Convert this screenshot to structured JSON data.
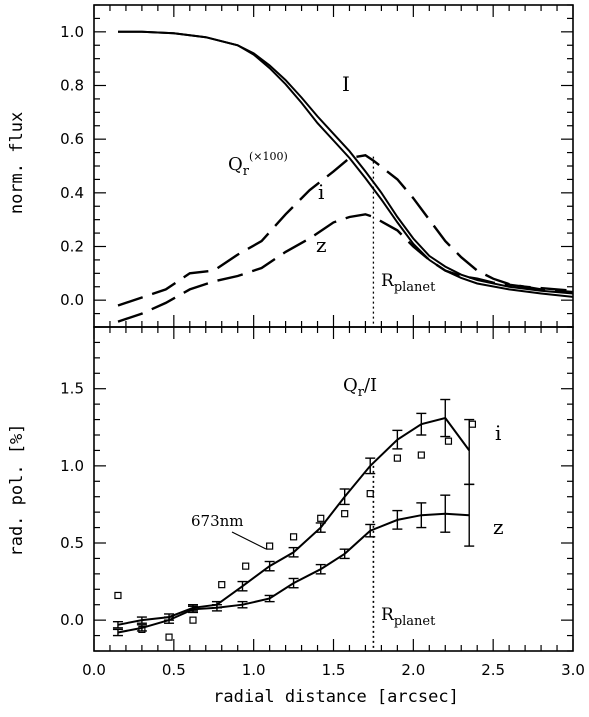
{
  "chart_data": [
    {
      "type": "line",
      "panel": "top",
      "ylabel": "norm. flux",
      "xlim": [
        0.0,
        3.0
      ],
      "ylim": [
        -0.1,
        1.1
      ],
      "yticks": [
        "0.0",
        "0.2",
        "0.4",
        "0.6",
        "0.8",
        "1.0"
      ],
      "series": [
        {
          "name": "I",
          "style": "solid",
          "x": [
            0.15,
            0.3,
            0.5,
            0.7,
            0.9,
            1.0,
            1.1,
            1.2,
            1.3,
            1.4,
            1.5,
            1.6,
            1.7,
            1.8,
            1.9,
            2.0,
            2.1,
            2.2,
            2.3,
            2.4,
            2.6,
            2.8,
            3.0
          ],
          "y": [
            1.0,
            1.0,
            0.995,
            0.98,
            0.95,
            0.92,
            0.875,
            0.82,
            0.755,
            0.685,
            0.62,
            0.555,
            0.48,
            0.4,
            0.31,
            0.23,
            0.165,
            0.125,
            0.095,
            0.075,
            0.05,
            0.035,
            0.025
          ]
        },
        {
          "name": "I",
          "style": "solid",
          "x": [
            0.15,
            0.3,
            0.5,
            0.7,
            0.9,
            1.0,
            1.1,
            1.2,
            1.3,
            1.4,
            1.5,
            1.6,
            1.7,
            1.8,
            1.9,
            2.0,
            2.1,
            2.2,
            2.3,
            2.4,
            2.6,
            2.8,
            3.0
          ],
          "y": [
            1.0,
            1.0,
            0.995,
            0.98,
            0.95,
            0.915,
            0.865,
            0.805,
            0.735,
            0.66,
            0.595,
            0.53,
            0.455,
            0.375,
            0.29,
            0.21,
            0.15,
            0.11,
            0.083,
            0.062,
            0.04,
            0.025,
            0.012
          ]
        },
        {
          "name": "Q_r (×100)",
          "style": "dashed",
          "x": [
            0.15,
            0.3,
            0.45,
            0.6,
            0.75,
            0.9,
            1.05,
            1.2,
            1.35,
            1.5,
            1.6,
            1.7,
            1.75,
            1.9,
            2.0,
            2.1,
            2.2,
            2.3,
            2.4,
            2.5,
            2.6,
            2.8,
            3.0
          ],
          "y": [
            -0.02,
            0.01,
            0.04,
            0.1,
            0.11,
            0.17,
            0.22,
            0.32,
            0.41,
            0.48,
            0.53,
            0.54,
            0.52,
            0.45,
            0.38,
            0.3,
            0.22,
            0.16,
            0.11,
            0.08,
            0.06,
            0.04,
            0.03
          ]
        },
        {
          "name": "i",
          "style": "dashed",
          "x": [
            0.15,
            0.3,
            0.45,
            0.6,
            0.75,
            0.9,
            1.05,
            1.2,
            1.35,
            1.5,
            1.6,
            1.7,
            1.75,
            1.9,
            2.0,
            2.1,
            2.2,
            2.3,
            2.4,
            2.5,
            2.6,
            2.8,
            3.0
          ],
          "y": [
            -0.02,
            0.01,
            0.04,
            0.1,
            0.11,
            0.17,
            0.22,
            0.32,
            0.41,
            0.48,
            0.53,
            0.54,
            0.52,
            0.45,
            0.38,
            0.3,
            0.22,
            0.16,
            0.11,
            0.08,
            0.06,
            0.04,
            0.03
          ]
        },
        {
          "name": "z",
          "style": "dashed",
          "x": [
            0.15,
            0.3,
            0.45,
            0.6,
            0.75,
            0.9,
            1.05,
            1.2,
            1.35,
            1.5,
            1.6,
            1.7,
            1.75,
            1.9,
            2.0,
            2.1,
            2.2,
            2.3,
            2.4,
            2.5,
            2.7,
            2.9,
            3.0
          ],
          "y": [
            -0.08,
            -0.05,
            -0.01,
            0.04,
            0.07,
            0.09,
            0.12,
            0.18,
            0.23,
            0.29,
            0.31,
            0.32,
            0.31,
            0.26,
            0.2,
            0.15,
            0.11,
            0.09,
            0.08,
            0.065,
            0.05,
            0.04,
            0.035
          ]
        }
      ],
      "annotations": {
        "I": "I",
        "qr_main": "Q",
        "qr_sub": "r",
        "qr_scale": "(×100)",
        "i": "i",
        "z": "z",
        "rplanet_main": "R",
        "rplanet_sub": "planet"
      },
      "rplanet_x": 1.75
    },
    {
      "type": "line",
      "panel": "bottom",
      "xlabel": "radial distance [arcsec]",
      "ylabel": "rad. pol. [%]",
      "xlim": [
        0.0,
        3.0
      ],
      "ylim": [
        -0.2,
        1.9
      ],
      "xticks": [
        "0.0",
        "0.5",
        "1.0",
        "1.5",
        "2.0",
        "2.5",
        "3.0"
      ],
      "yticks": [
        "0.0",
        "0.5",
        "1.0",
        "1.5"
      ],
      "series": [
        {
          "name": "i",
          "x": [
            0.15,
            0.3,
            0.47,
            0.62,
            0.77,
            0.93,
            1.1,
            1.25,
            1.42,
            1.57,
            1.73,
            1.9,
            2.05,
            2.2,
            2.35
          ],
          "y": [
            -0.03,
            0.0,
            0.02,
            0.08,
            0.1,
            0.22,
            0.35,
            0.44,
            0.6,
            0.8,
            1.0,
            1.17,
            1.27,
            1.31,
            1.1
          ],
          "err": [
            0.02,
            0.02,
            0.02,
            0.02,
            0.02,
            0.03,
            0.03,
            0.03,
            0.03,
            0.05,
            0.05,
            0.06,
            0.07,
            0.12,
            0.0
          ]
        },
        {
          "name": "z",
          "x": [
            0.15,
            0.3,
            0.47,
            0.62,
            0.77,
            0.93,
            1.1,
            1.25,
            1.42,
            1.57,
            1.73,
            1.9,
            2.05,
            2.2,
            2.35
          ],
          "y": [
            -0.08,
            -0.05,
            0.0,
            0.07,
            0.08,
            0.1,
            0.14,
            0.24,
            0.33,
            0.43,
            0.58,
            0.65,
            0.68,
            0.69,
            0.68
          ],
          "err": [
            0.02,
            0.02,
            0.02,
            0.02,
            0.02,
            0.02,
            0.02,
            0.03,
            0.03,
            0.03,
            0.04,
            0.06,
            0.08,
            0.12,
            0.0
          ]
        },
        {
          "name": "673nm",
          "style": "squares",
          "x": [
            0.15,
            0.3,
            0.47,
            0.62,
            0.8,
            0.95,
            1.1,
            1.25,
            1.42,
            1.57,
            1.73,
            1.9,
            2.05,
            2.22,
            2.37
          ],
          "y": [
            0.16,
            -0.06,
            -0.11,
            0.0,
            0.23,
            0.35,
            0.48,
            0.54,
            0.66,
            0.69,
            0.82,
            1.05,
            1.07,
            1.16,
            1.27
          ]
        }
      ],
      "vertical_errorbar_i": {
        "x": 2.35,
        "ymin": 0.88,
        "ymax": 1.3
      },
      "vertical_errorbar_z": {
        "x": 2.35,
        "ymin": 0.48,
        "ymax": 0.88
      },
      "annotations": {
        "title_main": "Q",
        "title_sub": "r",
        "title_rest": "/I",
        "i": "i",
        "z": "z",
        "sample": "673nm",
        "rplanet_main": "R",
        "rplanet_sub": "planet"
      },
      "rplanet_x": 1.75
    }
  ]
}
